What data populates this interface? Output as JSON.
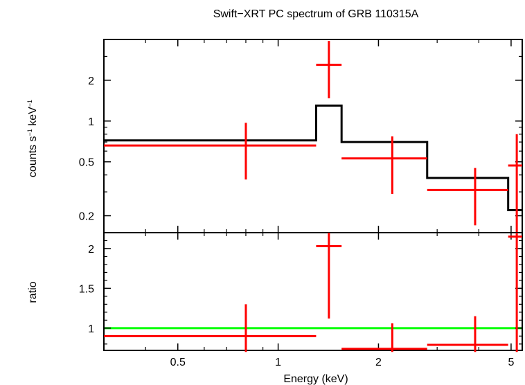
{
  "chart_data": [
    {
      "type": "scatter",
      "panel": "spectrum",
      "title": "Swift−XRT PC spectrum of GRB 110315A",
      "xlabel": "Energy (keV)",
      "ylabel_main": "counts s",
      "ylabel_sup1": "−1",
      "ylabel_mid": " keV",
      "ylabel_sup2": "−1",
      "x_scale": "log",
      "y_scale": "log",
      "xlim": [
        0.3,
        5.4
      ],
      "ylim": [
        0.15,
        4.0
      ],
      "yticks": [
        {
          "v": 0.2,
          "label": "0.2"
        },
        {
          "v": 0.5,
          "label": "0.5"
        },
        {
          "v": 1,
          "label": "1"
        },
        {
          "v": 2,
          "label": "2"
        }
      ],
      "data_points": [
        {
          "x": 0.8,
          "xlo": 0.3,
          "xhi": 1.3,
          "y": 0.66,
          "ylo": 0.37,
          "yhi": 0.97
        },
        {
          "x": 1.42,
          "xlo": 1.3,
          "xhi": 1.55,
          "y": 2.6,
          "ylo": 1.47,
          "yhi": 3.9
        },
        {
          "x": 2.2,
          "xlo": 1.55,
          "xhi": 2.8,
          "y": 0.53,
          "ylo": 0.29,
          "yhi": 0.77
        },
        {
          "x": 3.9,
          "xlo": 2.8,
          "xhi": 4.9,
          "y": 0.31,
          "ylo": 0.17,
          "yhi": 0.45
        },
        {
          "x": 5.2,
          "xlo": 4.9,
          "xhi": 5.4,
          "y": 0.47,
          "ylo": 0.15,
          "yhi": 0.8
        }
      ],
      "model_steps": [
        {
          "x0": 0.3,
          "x1": 1.3,
          "y": 0.72
        },
        {
          "x0": 1.3,
          "x1": 1.55,
          "y": 1.3
        },
        {
          "x0": 1.55,
          "x1": 2.8,
          "y": 0.7
        },
        {
          "x0": 2.8,
          "x1": 4.9,
          "y": 0.38
        },
        {
          "x0": 4.9,
          "x1": 5.4,
          "y": 0.22
        }
      ],
      "colors": {
        "data": "#ff0000",
        "model": "#000000",
        "axes": "#000000"
      }
    },
    {
      "type": "scatter",
      "panel": "ratio",
      "ylabel": "ratio",
      "x_scale": "log",
      "y_scale": "linear",
      "xlim": [
        0.3,
        5.4
      ],
      "ylim": [
        0.72,
        2.2
      ],
      "xticks": [
        {
          "v": 0.5,
          "label": "0.5"
        },
        {
          "v": 1,
          "label": "1"
        },
        {
          "v": 2,
          "label": "2"
        },
        {
          "v": 5,
          "label": "5"
        }
      ],
      "yticks": [
        {
          "v": 1,
          "label": "1"
        },
        {
          "v": 1.5,
          "label": "1.5"
        },
        {
          "v": 2,
          "label": "2"
        }
      ],
      "data_points": [
        {
          "x": 0.8,
          "xlo": 0.3,
          "xhi": 1.3,
          "y": 0.9,
          "ylo": 0.7,
          "yhi": 1.3
        },
        {
          "x": 1.42,
          "xlo": 1.3,
          "xhi": 1.55,
          "y": 2.03,
          "ylo": 1.12,
          "yhi": 2.2
        },
        {
          "x": 2.2,
          "xlo": 1.55,
          "xhi": 2.8,
          "y": 0.74,
          "ylo": 0.7,
          "yhi": 1.06
        },
        {
          "x": 3.9,
          "xlo": 2.8,
          "xhi": 4.9,
          "y": 0.79,
          "ylo": 0.7,
          "yhi": 1.15
        },
        {
          "x": 5.2,
          "xlo": 4.9,
          "xhi": 5.4,
          "y": 2.15,
          "ylo": 0.7,
          "yhi": 2.2
        }
      ],
      "reference_line": 1.0,
      "colors": {
        "data": "#ff0000",
        "reference": "#00ff00",
        "axes": "#000000"
      }
    }
  ]
}
